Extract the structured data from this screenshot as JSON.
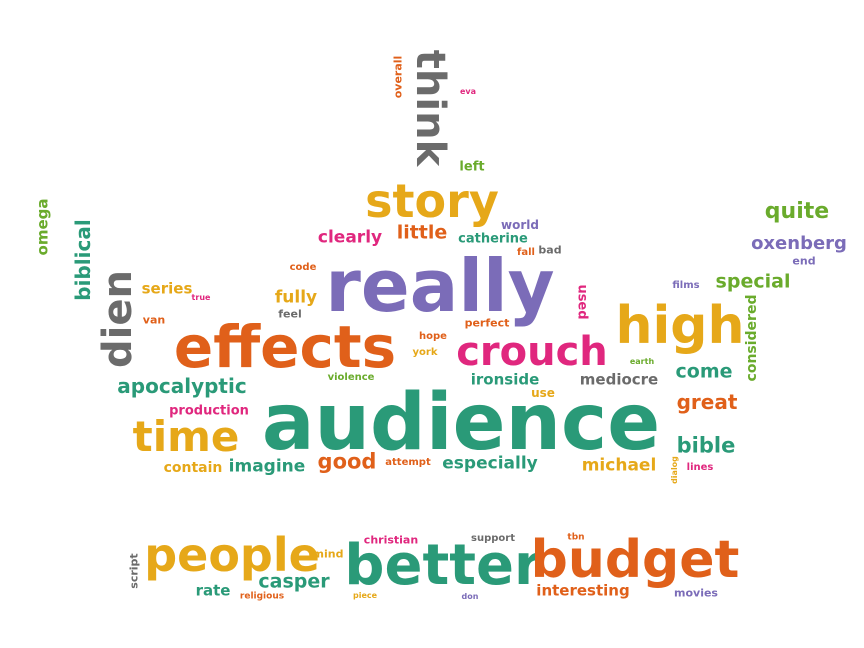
{
  "words": {
    "audience": "audience",
    "really": "really",
    "effects": "effects",
    "better": "better",
    "budget": "budget",
    "people": "people",
    "high": "high",
    "crouch": "crouch",
    "story": "story",
    "think": "think",
    "time": "time",
    "dien": "dien",
    "apocalyptic": "apocalyptic",
    "clearly": "clearly",
    "little": "little",
    "catherine": "catherine",
    "world": "world",
    "fall": "fall",
    "bad": "bad",
    "left": "left",
    "overall": "overall",
    "eva": "eva",
    "omega": "omega",
    "biblical": "biblical",
    "series": "series",
    "true": "true",
    "van": "van",
    "code": "code",
    "fully": "fully",
    "feel": "feel",
    "used": "used",
    "perfect": "perfect",
    "hope": "hope",
    "york": "york",
    "violence": "violence",
    "ironside": "ironside",
    "use": "use",
    "mediocre": "mediocre",
    "earth": "earth",
    "films": "films",
    "special": "special",
    "quite": "quite",
    "oxenberg": "oxenberg",
    "end": "end",
    "considered": "considered",
    "come": "come",
    "great": "great",
    "bible": "bible",
    "lines": "lines",
    "dialog": "dialog",
    "production": "production",
    "contain": "contain",
    "imagine": "imagine",
    "good": "good",
    "attempt": "attempt",
    "especially": "especially",
    "michael": "michael",
    "script": "script",
    "mind": "mind",
    "rate": "rate",
    "religious": "religious",
    "casper": "casper",
    "christian": "christian",
    "support": "support",
    "tbn": "tbn",
    "piece": "piece",
    "don": "don",
    "interesting": "interesting",
    "movies": "movies"
  },
  "colors": {
    "green": "#6aab2c",
    "teal": "#2a9a78",
    "orange": "#e0601a",
    "gold": "#e6a819",
    "magenta": "#e0277e",
    "purple": "#7b6cb8",
    "gray": "#6b6b6b"
  }
}
